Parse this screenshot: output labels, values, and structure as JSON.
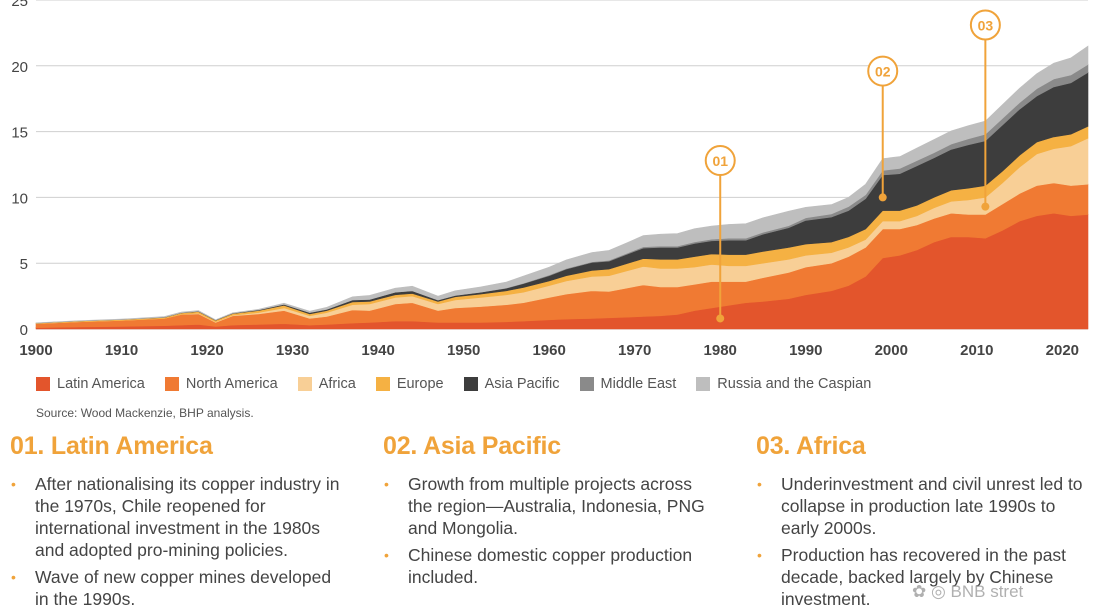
{
  "chart_data": {
    "type": "area",
    "stacked": true,
    "x": [
      1900,
      1905,
      1910,
      1915,
      1917,
      1919,
      1921,
      1923,
      1926,
      1929,
      1932,
      1934,
      1937,
      1939,
      1942,
      1944,
      1947,
      1949,
      1952,
      1955,
      1957,
      1960,
      1962,
      1965,
      1967,
      1969,
      1971,
      1973,
      1975,
      1977,
      1979,
      1981,
      1983,
      1985,
      1988,
      1990,
      1993,
      1995,
      1997,
      1999,
      2001,
      2003,
      2005,
      2007,
      2009,
      2011,
      2013,
      2015,
      2017,
      2019,
      2021,
      2023
    ],
    "series": [
      {
        "name": "Latin America",
        "color": "#e3552c",
        "values": [
          0.1,
          0.15,
          0.2,
          0.25,
          0.3,
          0.35,
          0.2,
          0.3,
          0.35,
          0.4,
          0.3,
          0.35,
          0.45,
          0.5,
          0.6,
          0.6,
          0.5,
          0.5,
          0.5,
          0.55,
          0.6,
          0.7,
          0.75,
          0.8,
          0.85,
          0.9,
          0.95,
          1.0,
          1.1,
          1.4,
          1.6,
          1.8,
          2.0,
          2.1,
          2.3,
          2.6,
          2.9,
          3.3,
          4.0,
          5.4,
          5.6,
          6.0,
          6.6,
          7.0,
          7.0,
          6.9,
          7.5,
          8.2,
          8.6,
          8.8,
          8.6,
          8.7
        ]
      },
      {
        "name": "North America",
        "color": "#f07a33",
        "values": [
          0.3,
          0.4,
          0.45,
          0.55,
          0.8,
          0.8,
          0.3,
          0.7,
          0.8,
          1.0,
          0.5,
          0.6,
          1.0,
          0.9,
          1.3,
          1.4,
          0.9,
          1.1,
          1.2,
          1.3,
          1.4,
          1.7,
          1.9,
          2.1,
          2.0,
          2.2,
          2.4,
          2.2,
          2.1,
          2.0,
          2.0,
          1.8,
          1.6,
          1.8,
          2.0,
          2.1,
          2.1,
          2.2,
          2.2,
          2.2,
          2.0,
          1.9,
          1.8,
          1.8,
          1.7,
          1.8,
          2.0,
          2.1,
          2.3,
          2.3,
          2.3,
          2.3
        ]
      },
      {
        "name": "Africa",
        "color": "#f8cf96",
        "values": [
          0.0,
          0.0,
          0.0,
          0.0,
          0.02,
          0.05,
          0.05,
          0.05,
          0.1,
          0.2,
          0.2,
          0.3,
          0.4,
          0.5,
          0.5,
          0.5,
          0.5,
          0.6,
          0.7,
          0.75,
          0.8,
          0.9,
          1.0,
          1.1,
          1.2,
          1.3,
          1.4,
          1.4,
          1.4,
          1.3,
          1.3,
          1.2,
          1.2,
          1.1,
          1.0,
          0.9,
          0.8,
          0.7,
          0.6,
          0.6,
          0.6,
          0.7,
          0.8,
          0.9,
          1.1,
          1.3,
          1.6,
          2.0,
          2.4,
          2.6,
          3.0,
          3.5
        ]
      },
      {
        "name": "Europe",
        "color": "#f5b143",
        "values": [
          0.05,
          0.06,
          0.07,
          0.08,
          0.1,
          0.12,
          0.1,
          0.12,
          0.15,
          0.2,
          0.15,
          0.15,
          0.2,
          0.2,
          0.2,
          0.2,
          0.2,
          0.25,
          0.25,
          0.3,
          0.35,
          0.35,
          0.4,
          0.45,
          0.5,
          0.55,
          0.6,
          0.7,
          0.7,
          0.8,
          0.8,
          0.85,
          0.85,
          0.9,
          0.9,
          0.85,
          0.8,
          0.8,
          0.8,
          0.8,
          0.8,
          0.8,
          0.8,
          0.85,
          0.9,
          0.9,
          0.9,
          0.9,
          0.9,
          0.9,
          0.9,
          0.9
        ]
      },
      {
        "name": "Asia Pacific",
        "color": "#3d3d3d",
        "values": [
          0.0,
          0.0,
          0.0,
          0.02,
          0.02,
          0.03,
          0.03,
          0.03,
          0.05,
          0.08,
          0.1,
          0.1,
          0.15,
          0.15,
          0.2,
          0.2,
          0.1,
          0.1,
          0.15,
          0.2,
          0.3,
          0.4,
          0.5,
          0.6,
          0.6,
          0.7,
          0.8,
          0.9,
          0.9,
          1.0,
          1.0,
          1.1,
          1.1,
          1.3,
          1.5,
          1.8,
          1.9,
          2.0,
          2.3,
          2.7,
          2.8,
          3.0,
          3.0,
          3.1,
          3.3,
          3.4,
          3.5,
          3.5,
          3.5,
          3.8,
          3.9,
          4.1
        ]
      },
      {
        "name": "Middle East",
        "color": "#8a8a8a",
        "values": [
          0.0,
          0.0,
          0.0,
          0.0,
          0.0,
          0.0,
          0.0,
          0.0,
          0.0,
          0.0,
          0.0,
          0.0,
          0.0,
          0.0,
          0.0,
          0.0,
          0.0,
          0.0,
          0.0,
          0.02,
          0.03,
          0.05,
          0.05,
          0.06,
          0.07,
          0.08,
          0.1,
          0.1,
          0.1,
          0.12,
          0.12,
          0.15,
          0.15,
          0.15,
          0.15,
          0.2,
          0.25,
          0.3,
          0.3,
          0.35,
          0.4,
          0.4,
          0.4,
          0.4,
          0.45,
          0.5,
          0.5,
          0.5,
          0.55,
          0.6,
          0.6,
          0.6
        ]
      },
      {
        "name": "Russia and the Caspian",
        "color": "#bebebe",
        "values": [
          0.02,
          0.02,
          0.03,
          0.04,
          0.05,
          0.05,
          0.02,
          0.03,
          0.05,
          0.08,
          0.1,
          0.15,
          0.25,
          0.3,
          0.3,
          0.35,
          0.3,
          0.35,
          0.4,
          0.45,
          0.55,
          0.6,
          0.65,
          0.7,
          0.75,
          0.8,
          0.85,
          0.9,
          0.95,
          1.0,
          1.0,
          1.05,
          1.1,
          1.1,
          1.1,
          0.8,
          0.7,
          0.7,
          0.8,
          0.9,
          0.9,
          0.95,
          1.0,
          1.0,
          1.0,
          1.0,
          1.05,
          1.1,
          1.15,
          1.2,
          1.3,
          1.4
        ]
      }
    ],
    "xlim": [
      1900,
      2023
    ],
    "ylim": [
      0,
      25
    ],
    "xticks": [
      1900,
      1910,
      1920,
      1930,
      1940,
      1950,
      1960,
      1970,
      1980,
      1990,
      2000,
      2010,
      2020
    ],
    "yticks": [
      0,
      5,
      10,
      15,
      20,
      25
    ],
    "grid": true,
    "legend_position": "bottom",
    "annotations": [
      {
        "label": "01",
        "x": 1980,
        "y": 0.8,
        "label_y": 12.8
      },
      {
        "label": "02",
        "x": 1999,
        "y": 10.0,
        "label_y": 19.6
      },
      {
        "label": "03",
        "x": 2011,
        "y": 9.3,
        "label_y": 23.1
      }
    ]
  },
  "legend": [
    {
      "label": "Latin America",
      "color": "#e3552c"
    },
    {
      "label": "North America",
      "color": "#f07a33"
    },
    {
      "label": "Africa",
      "color": "#f8cf96"
    },
    {
      "label": "Europe",
      "color": "#f5b143"
    },
    {
      "label": "Asia Pacific",
      "color": "#3d3d3d"
    },
    {
      "label": "Middle East",
      "color": "#8a8a8a"
    },
    {
      "label": "Russia and the Caspian",
      "color": "#bebebe"
    }
  ],
  "source": "Source: Wood Mackenzie, BHP analysis.",
  "sections": [
    {
      "title": "01. Latin America",
      "bullets": [
        "After nationalising its copper industry in the 1970s, Chile reopened for international investment in the 1980s and adopted pro-mining policies.",
        "Wave of new copper mines developed in the 1990s."
      ]
    },
    {
      "title": "02. Asia Pacific",
      "bullets": [
        "Growth from multiple projects across the region—Australia, Indonesia, PNG and Mongolia.",
        "Chinese domestic copper production included."
      ]
    },
    {
      "title": "03. Africa",
      "bullets": [
        "Underinvestment and civil unrest led to collapse in production late 1990s to early 2000s.",
        "Production has recovered in the past decade, backed largely by Chinese investment."
      ]
    }
  ],
  "accent_color": "#f0a33a",
  "watermark": "BNB stret"
}
